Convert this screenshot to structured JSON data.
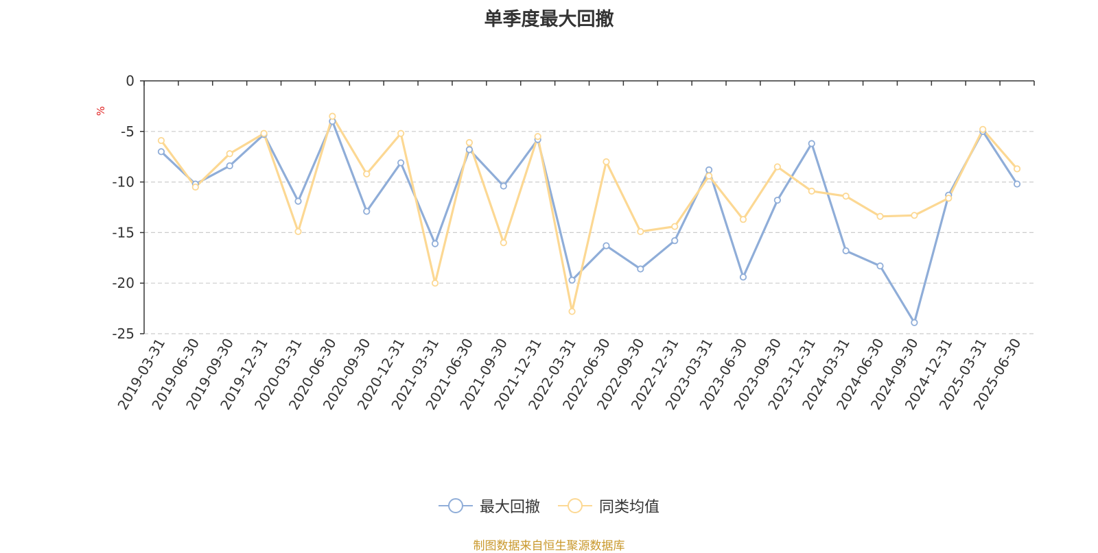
{
  "title": "单季度最大回撤",
  "unit_label": "%",
  "source_text": "制图数据来自恒生聚源数据库",
  "colors": {
    "series_1": "#8fadd8",
    "series_2": "#fcd893",
    "unit": "#e02020",
    "source": "#c9982c"
  },
  "chart_data": {
    "type": "line",
    "title": "单季度最大回撤",
    "ylabel": "%",
    "ylim": [
      -25,
      0
    ],
    "yticks": [
      0,
      -5,
      -10,
      -15,
      -20,
      -25
    ],
    "grid": true,
    "legend_position": "bottom-center",
    "x": [
      "2019-03-31",
      "2019-06-30",
      "2019-09-30",
      "2019-12-31",
      "2020-03-31",
      "2020-06-30",
      "2020-09-30",
      "2020-12-31",
      "2021-03-31",
      "2021-06-30",
      "2021-09-30",
      "2021-12-31",
      "2022-03-31",
      "2022-06-30",
      "2022-09-30",
      "2022-12-31",
      "2023-03-31",
      "2023-06-30",
      "2023-09-30",
      "2023-12-31",
      "2024-03-31",
      "2024-06-30",
      "2024-09-30",
      "2024-12-31",
      "2025-03-31",
      "2025-06-30"
    ],
    "series": [
      {
        "name": "最大回撤",
        "values": [
          -7.0,
          -10.2,
          -8.4,
          -5.3,
          -11.9,
          -4.0,
          -12.9,
          -8.1,
          -16.1,
          -6.8,
          -10.4,
          -5.8,
          -19.7,
          -16.3,
          -18.6,
          -15.8,
          -8.8,
          -19.4,
          -11.8,
          -6.2,
          -16.8,
          -18.3,
          -23.9,
          -11.3,
          -5.0,
          -10.2
        ]
      },
      {
        "name": "同类均值",
        "values": [
          -5.9,
          -10.5,
          -7.2,
          -5.2,
          -14.9,
          -3.5,
          -9.2,
          -5.2,
          -20.0,
          -6.1,
          -16.0,
          -5.5,
          -22.8,
          -8.0,
          -14.9,
          -14.4,
          -9.4,
          -13.7,
          -8.5,
          -10.9,
          -11.4,
          -13.4,
          -13.3,
          -11.6,
          -4.8,
          -8.7
        ]
      }
    ]
  }
}
